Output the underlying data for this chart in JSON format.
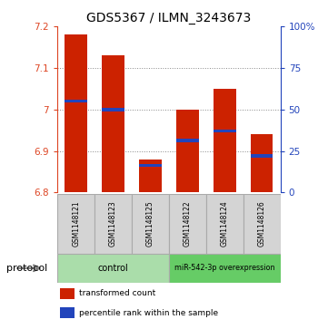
{
  "title": "GDS5367 / ILMN_3243673",
  "samples": [
    "GSM1148121",
    "GSM1148123",
    "GSM1148125",
    "GSM1148122",
    "GSM1148124",
    "GSM1148126"
  ],
  "bar_tops": [
    7.18,
    7.13,
    6.88,
    7.0,
    7.05,
    6.94
  ],
  "bar_bottom": 6.8,
  "blue_positions": [
    7.02,
    7.0,
    6.865,
    6.925,
    6.948,
    6.888
  ],
  "ylim": [
    6.8,
    7.2
  ],
  "yticks_left": [
    6.8,
    6.9,
    7.0,
    7.1,
    7.2
  ],
  "yticks_left_labels": [
    "6.8",
    "6.9",
    "7",
    "7.1",
    "7.2"
  ],
  "yticks_right_pct": [
    0,
    25,
    50,
    75,
    100
  ],
  "yticks_right_labels": [
    "0",
    "25",
    "50",
    "75",
    "100%"
  ],
  "grid_values": [
    6.9,
    7.0,
    7.1
  ],
  "bar_color": "#cc2200",
  "blue_color": "#2244bb",
  "protocol_groups": [
    {
      "label": "control",
      "indices": [
        0,
        1,
        2
      ],
      "color": "#aaddaa"
    },
    {
      "label": "miR-542-3p overexpression",
      "indices": [
        3,
        4,
        5
      ],
      "color": "#66cc66"
    }
  ],
  "legend_items": [
    {
      "label": "transformed count",
      "color": "#cc2200"
    },
    {
      "label": "percentile rank within the sample",
      "color": "#2244bb"
    }
  ],
  "title_fontsize": 10,
  "tick_fontsize": 7.5,
  "protocol_label": "protocol",
  "background_color": "#ffffff",
  "plot_bg": "#ffffff",
  "right_axis_color": "#2244bb",
  "left_axis_color": "#dd4422"
}
